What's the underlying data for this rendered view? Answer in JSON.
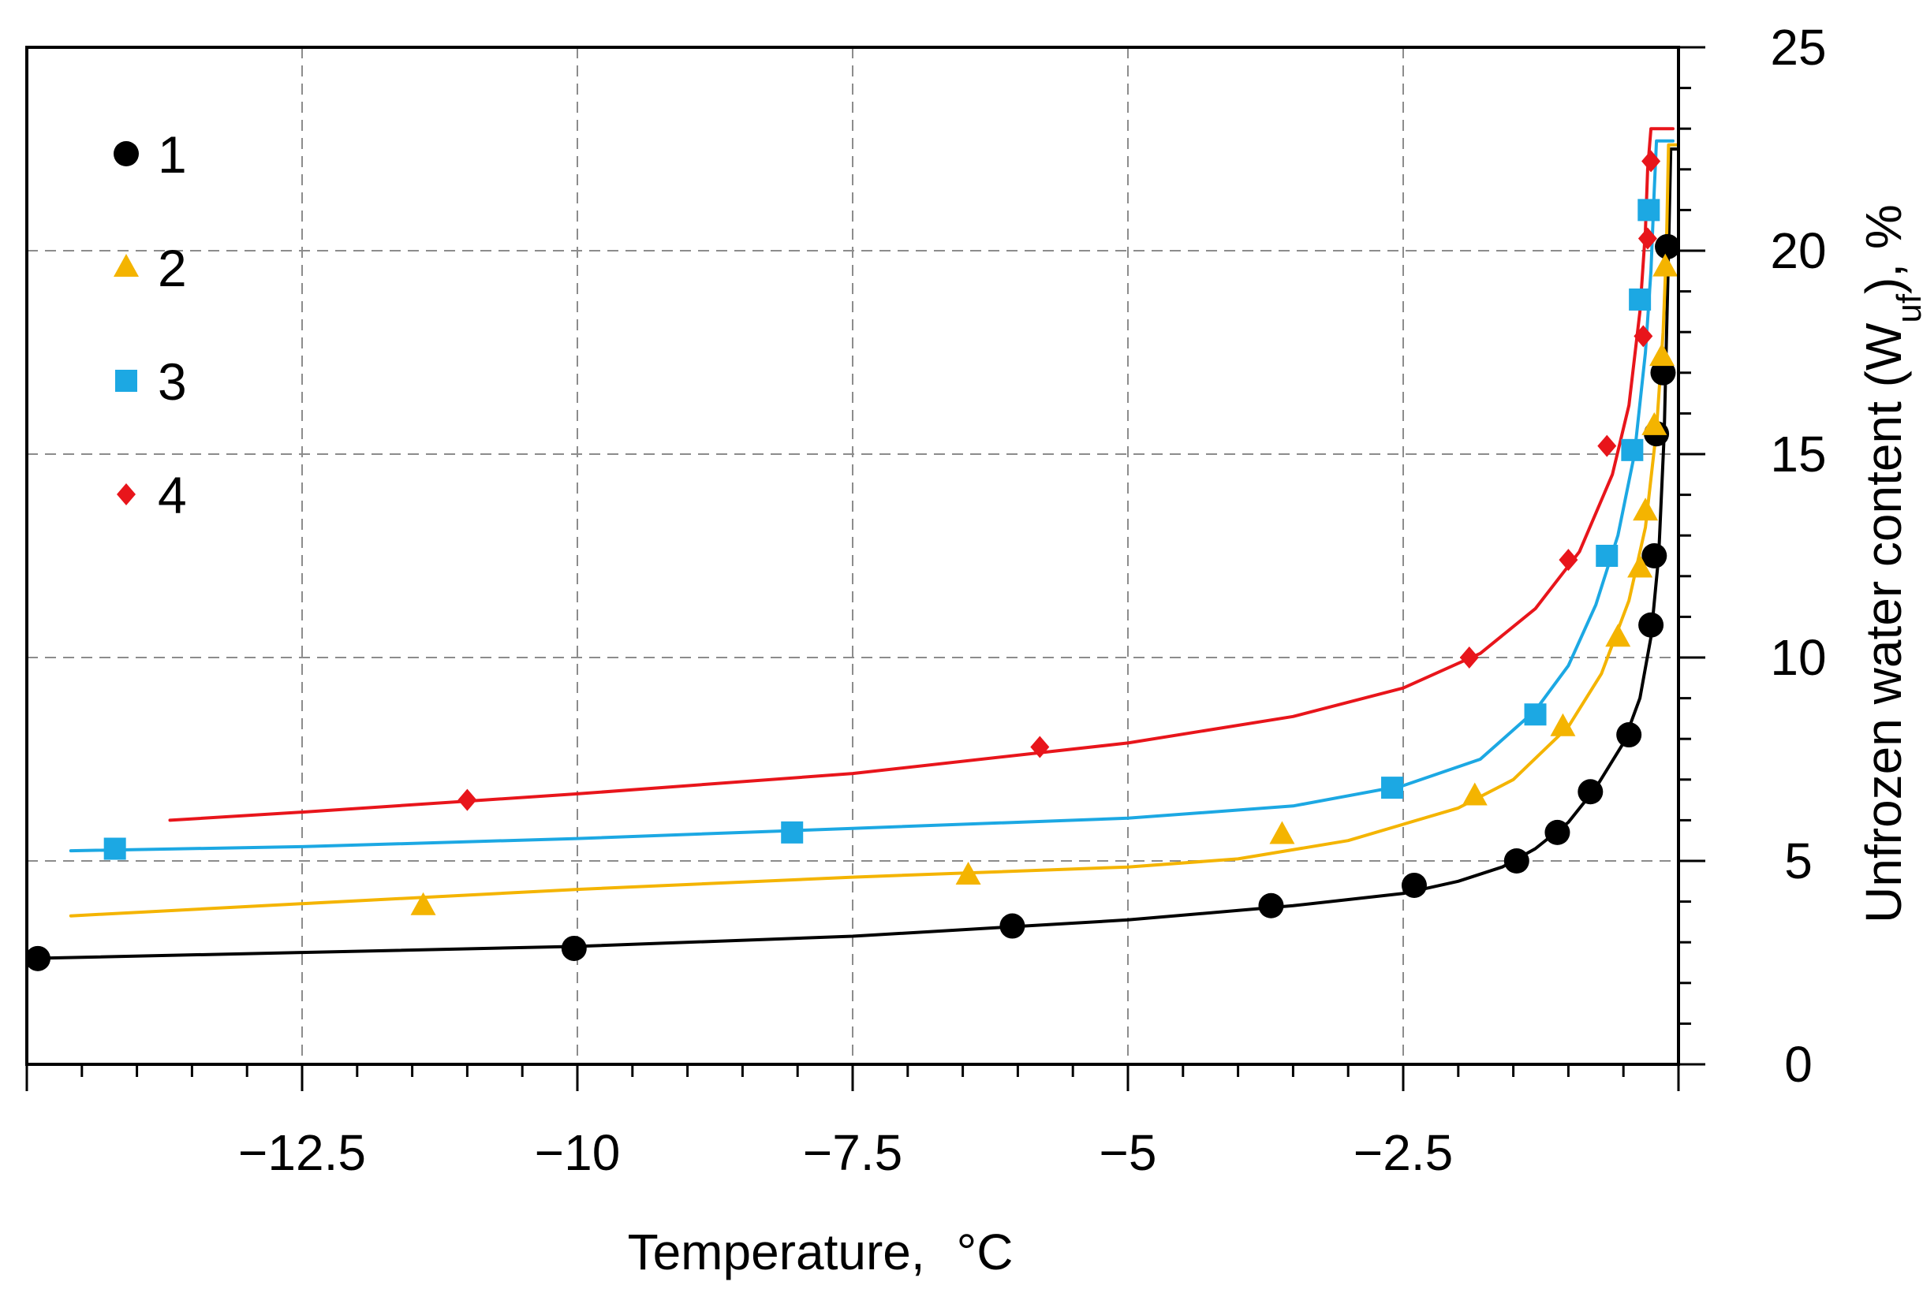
{
  "chart_data": {
    "type": "scatter",
    "xlabel": "Temperature,",
    "xlabel_unit": "°C",
    "ylabel": "Unfrozen water content (W",
    "ylabel_sub": "uf",
    "ylabel_end": "), %",
    "xlim": [
      -15,
      0
    ],
    "ylim": [
      0,
      25
    ],
    "grid": true,
    "legend_position": "top-left",
    "x_ticks": [
      -12.5,
      -10,
      -7.5,
      -5,
      -2.5
    ],
    "x_tick_labels": [
      "−12.5",
      "−10",
      "−7.5",
      "−5",
      "−2.5"
    ],
    "y_ticks": [
      0,
      5,
      10,
      15,
      20,
      25
    ],
    "y_tick_labels": [
      "0",
      "5",
      "10",
      "15",
      "20",
      "25"
    ],
    "series": [
      {
        "name": "1",
        "marker": "circle",
        "color": "#000000",
        "points": [
          [
            -14.9,
            2.6
          ],
          [
            -10.03,
            2.85
          ],
          [
            -6.05,
            3.4
          ],
          [
            -3.7,
            3.9
          ],
          [
            -2.4,
            4.4
          ],
          [
            -1.47,
            5.0
          ],
          [
            -1.1,
            5.7
          ],
          [
            -0.8,
            6.7
          ],
          [
            -0.45,
            8.1
          ],
          [
            -0.25,
            10.8
          ],
          [
            -0.22,
            12.5
          ],
          [
            -0.2,
            15.5
          ],
          [
            -0.14,
            17.0
          ],
          [
            -0.1,
            20.1
          ]
        ],
        "curve": [
          [
            -15.0,
            2.6
          ],
          [
            -12.5,
            2.75
          ],
          [
            -10.0,
            2.9
          ],
          [
            -7.5,
            3.15
          ],
          [
            -5.0,
            3.55
          ],
          [
            -3.5,
            3.9
          ],
          [
            -2.5,
            4.2
          ],
          [
            -2.0,
            4.5
          ],
          [
            -1.6,
            4.85
          ],
          [
            -1.3,
            5.3
          ],
          [
            -1.0,
            5.95
          ],
          [
            -0.75,
            6.8
          ],
          [
            -0.5,
            7.9
          ],
          [
            -0.35,
            9.0
          ],
          [
            -0.25,
            10.5
          ],
          [
            -0.18,
            12.5
          ],
          [
            -0.13,
            15.5
          ],
          [
            -0.09,
            20.0
          ],
          [
            -0.07,
            22.5
          ],
          [
            -0.02,
            22.5
          ]
        ]
      },
      {
        "name": "2",
        "marker": "triangle",
        "color": "#f4b400",
        "points": [
          [
            -11.4,
            3.9
          ],
          [
            -6.45,
            4.65
          ],
          [
            -3.6,
            5.65
          ],
          [
            -1.85,
            6.6
          ],
          [
            -1.05,
            8.3
          ],
          [
            -0.55,
            10.5
          ],
          [
            -0.35,
            12.2
          ],
          [
            -0.3,
            13.6
          ],
          [
            -0.22,
            15.7
          ],
          [
            -0.15,
            17.4
          ],
          [
            -0.12,
            19.6
          ]
        ],
        "curve": [
          [
            -14.6,
            3.65
          ],
          [
            -12.5,
            3.95
          ],
          [
            -10.0,
            4.3
          ],
          [
            -7.5,
            4.6
          ],
          [
            -5.0,
            4.85
          ],
          [
            -4.0,
            5.05
          ],
          [
            -3.0,
            5.5
          ],
          [
            -2.0,
            6.3
          ],
          [
            -1.5,
            7.0
          ],
          [
            -1.0,
            8.3
          ],
          [
            -0.7,
            9.6
          ],
          [
            -0.45,
            11.4
          ],
          [
            -0.3,
            13.2
          ],
          [
            -0.2,
            15.6
          ],
          [
            -0.14,
            18.0
          ],
          [
            -0.11,
            20.0
          ],
          [
            -0.09,
            22.6
          ],
          [
            -0.02,
            22.6
          ]
        ]
      },
      {
        "name": "3",
        "marker": "square",
        "color": "#1ca8e3",
        "points": [
          [
            -14.2,
            5.3
          ],
          [
            -8.05,
            5.7
          ],
          [
            -2.6,
            6.8
          ],
          [
            -1.3,
            8.6
          ],
          [
            -0.65,
            12.5
          ],
          [
            -0.42,
            15.1
          ],
          [
            -0.35,
            18.8
          ],
          [
            -0.27,
            21.0
          ]
        ],
        "curve": [
          [
            -14.6,
            5.25
          ],
          [
            -12.5,
            5.35
          ],
          [
            -10.0,
            5.55
          ],
          [
            -7.5,
            5.8
          ],
          [
            -5.0,
            6.05
          ],
          [
            -3.5,
            6.35
          ],
          [
            -2.5,
            6.85
          ],
          [
            -1.8,
            7.5
          ],
          [
            -1.3,
            8.7
          ],
          [
            -1.0,
            9.8
          ],
          [
            -0.75,
            11.3
          ],
          [
            -0.55,
            13.0
          ],
          [
            -0.4,
            15.0
          ],
          [
            -0.3,
            17.5
          ],
          [
            -0.25,
            19.5
          ],
          [
            -0.22,
            21.5
          ],
          [
            -0.2,
            22.7
          ],
          [
            -0.05,
            22.7
          ]
        ]
      },
      {
        "name": "4",
        "marker": "diamond",
        "color": "#e8151b",
        "points": [
          [
            -11.0,
            6.5
          ],
          [
            -5.8,
            7.8
          ],
          [
            -1.9,
            10.0
          ],
          [
            -1.0,
            12.4
          ],
          [
            -0.65,
            15.2
          ],
          [
            -0.32,
            17.9
          ],
          [
            -0.28,
            20.3
          ],
          [
            -0.25,
            22.2
          ]
        ],
        "curve": [
          [
            -13.7,
            6.0
          ],
          [
            -12.5,
            6.2
          ],
          [
            -10.0,
            6.65
          ],
          [
            -7.5,
            7.15
          ],
          [
            -5.0,
            7.9
          ],
          [
            -3.5,
            8.55
          ],
          [
            -2.5,
            9.25
          ],
          [
            -1.8,
            10.1
          ],
          [
            -1.3,
            11.2
          ],
          [
            -0.9,
            12.6
          ],
          [
            -0.6,
            14.5
          ],
          [
            -0.45,
            16.2
          ],
          [
            -0.35,
            18.5
          ],
          [
            -0.3,
            20.5
          ],
          [
            -0.28,
            22.0
          ],
          [
            -0.25,
            23.0
          ],
          [
            -0.05,
            23.0
          ]
        ]
      }
    ]
  }
}
